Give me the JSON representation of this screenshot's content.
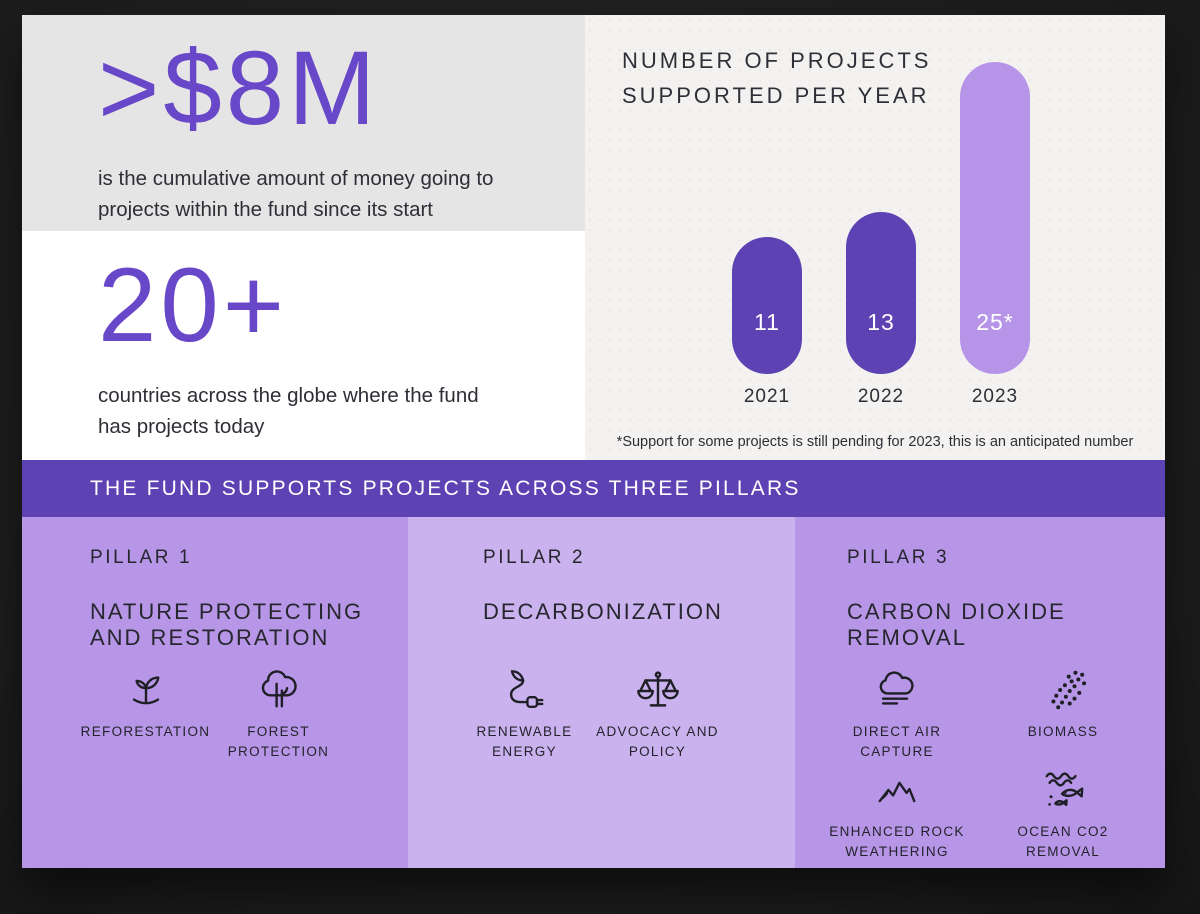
{
  "stats": [
    {
      "value": ">$8M",
      "description": "is the cumulative amount of money going to projects within the fund since its start"
    },
    {
      "value": "20+",
      "description": "countries across the globe where the fund has projects today"
    }
  ],
  "chart_data": {
    "type": "bar",
    "title": "NUMBER OF PROJECTS SUPPORTED PER YEAR",
    "categories": [
      "2021",
      "2022",
      "2023"
    ],
    "values": [
      11,
      13,
      25
    ],
    "display_values": [
      "11",
      "13",
      "25*"
    ],
    "bar_colors": [
      "#5C42B3",
      "#5C42B3",
      "#B695E8"
    ],
    "ylim": [
      0,
      25
    ],
    "grid": false,
    "legend": "none",
    "footnote": "*Support for some projects is still pending for 2023, this is an anticipated number"
  },
  "banner": {
    "label": "THE FUND SUPPORTS PROJECTS ACROSS THREE PILLARS"
  },
  "pillars": [
    {
      "label": "PILLAR 1",
      "title": "NATURE PROTECTING AND RESTORATION",
      "items": [
        {
          "icon": "sprout-icon",
          "label": "REFORESTATION"
        },
        {
          "icon": "tree-icon",
          "label": "FOREST PROTECTION"
        }
      ]
    },
    {
      "label": "PILLAR 2",
      "title": "DECARBONIZATION",
      "items": [
        {
          "icon": "plant-plug-icon",
          "label": "RENEWABLE ENERGY"
        },
        {
          "icon": "scales-icon",
          "label": "ADVOCACY AND POLICY"
        }
      ]
    },
    {
      "label": "PILLAR 3",
      "title": "CARBON DIOXIDE REMOVAL",
      "items": [
        {
          "icon": "cloud-capture-icon",
          "label": "DIRECT AIR CAPTURE"
        },
        {
          "icon": "particles-icon",
          "label": "BIOMASS"
        },
        {
          "icon": "mountains-icon",
          "label": "ENHANCED ROCK WEATHERING"
        },
        {
          "icon": "ocean-fish-icon",
          "label": "OCEAN CO2 REMOVAL"
        }
      ]
    }
  ],
  "colors": {
    "accent_purple": "#6847C8",
    "bar_dark": "#5C42B3",
    "bar_light": "#B695E8",
    "banner_bg": "#5C42B3",
    "pillar_bg_dark": "#B796E7",
    "pillar_bg_light": "#C9B2EE",
    "stat_box_gray": "#E6E5E5",
    "chart_bg": "#F3F2F1",
    "text_dark": "#2E2E36"
  }
}
